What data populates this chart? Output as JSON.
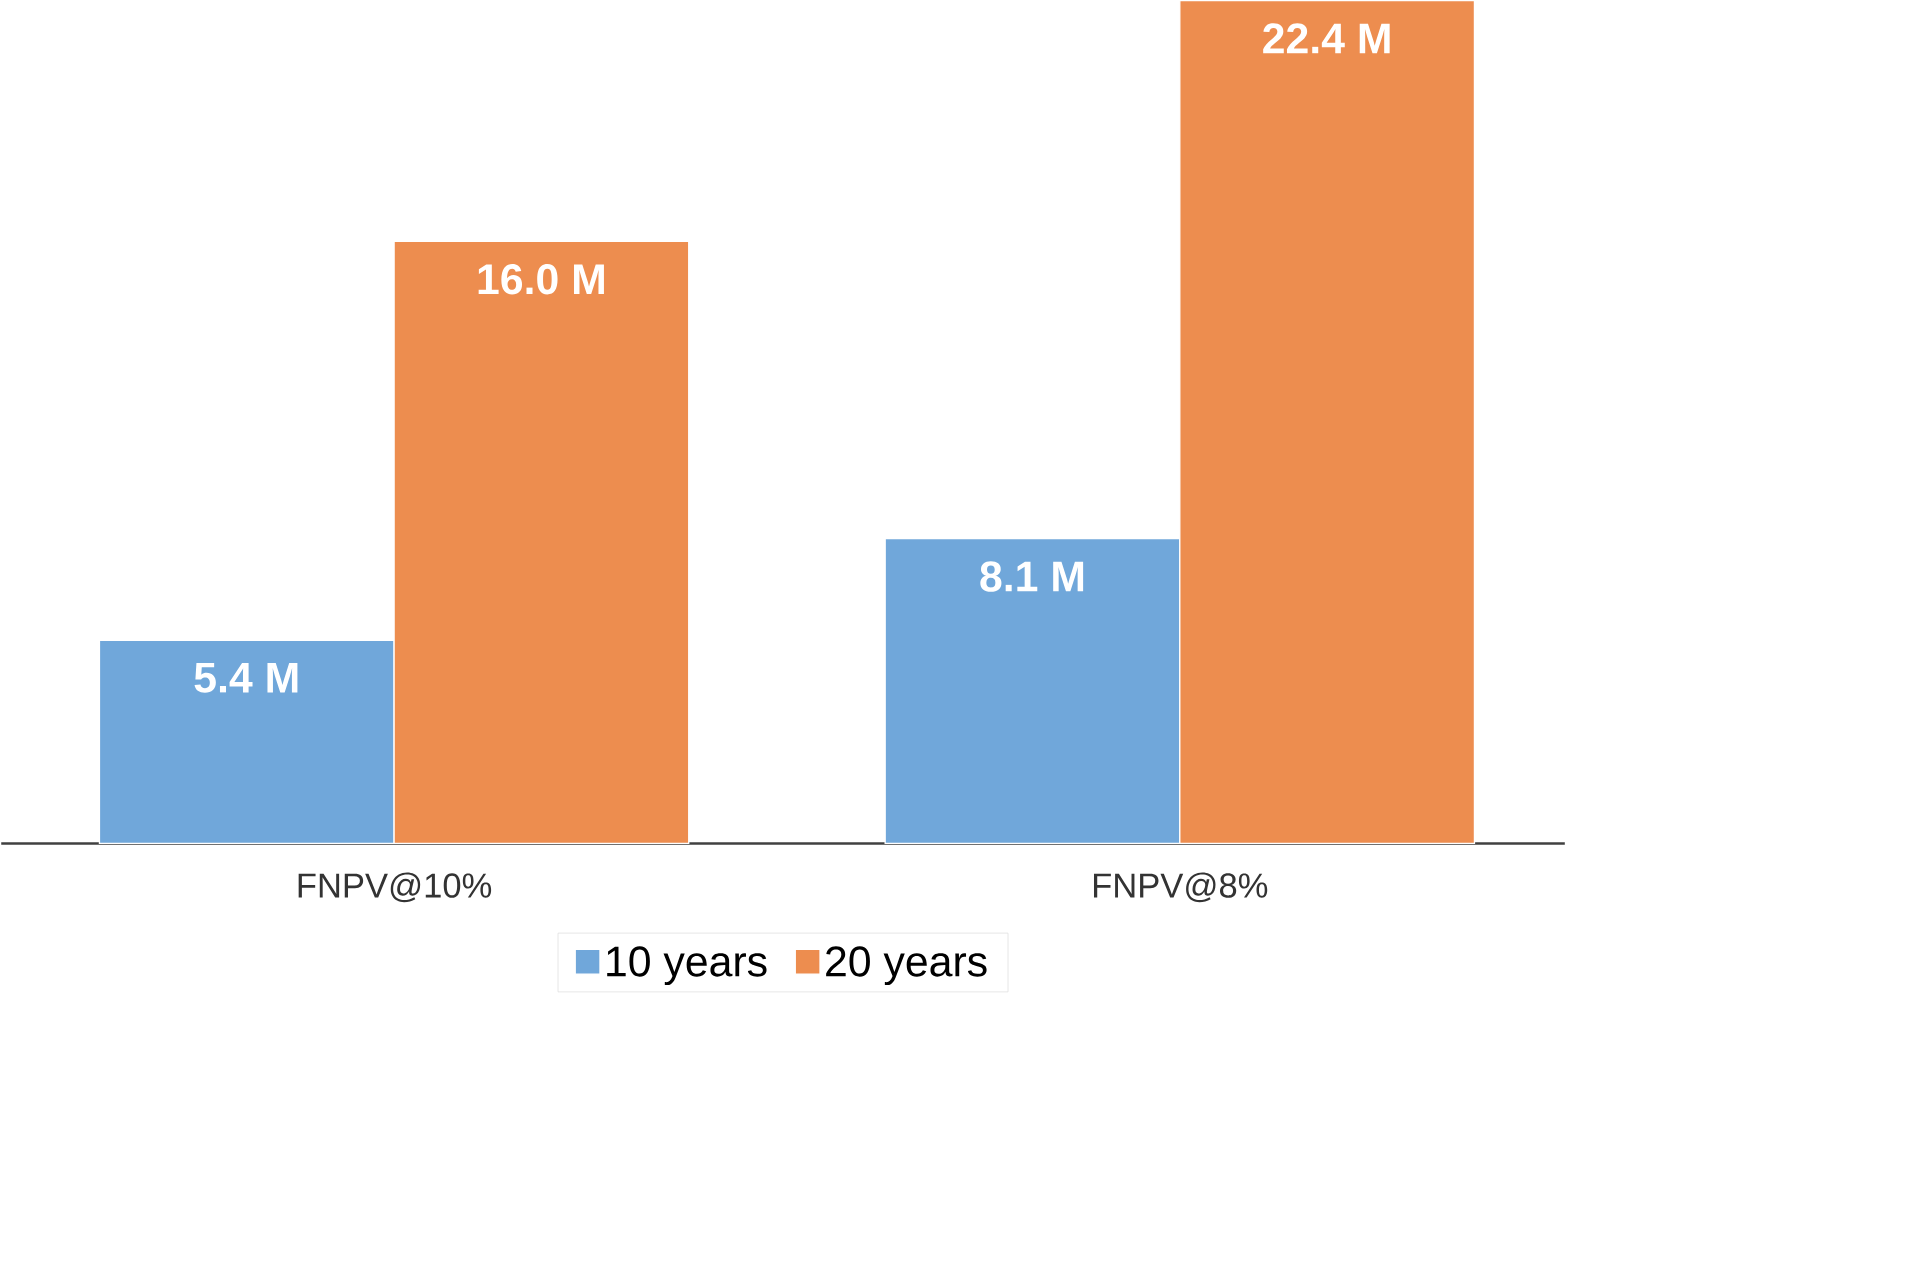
{
  "chart_data": {
    "type": "bar",
    "categories": [
      "FNPV@10%",
      "FNPV@8%"
    ],
    "series": [
      {
        "name": "10 years",
        "color": "#70a7da",
        "values": [
          5.4,
          8.1
        ],
        "value_labels": [
          "5.4 M",
          "8.1 M"
        ]
      },
      {
        "name": "20 years",
        "color": "#ed8d4f",
        "values": [
          16.0,
          22.4
        ],
        "value_labels": [
          "16.0 M",
          "22.4 M"
        ]
      }
    ],
    "legend": "bottom"
  }
}
